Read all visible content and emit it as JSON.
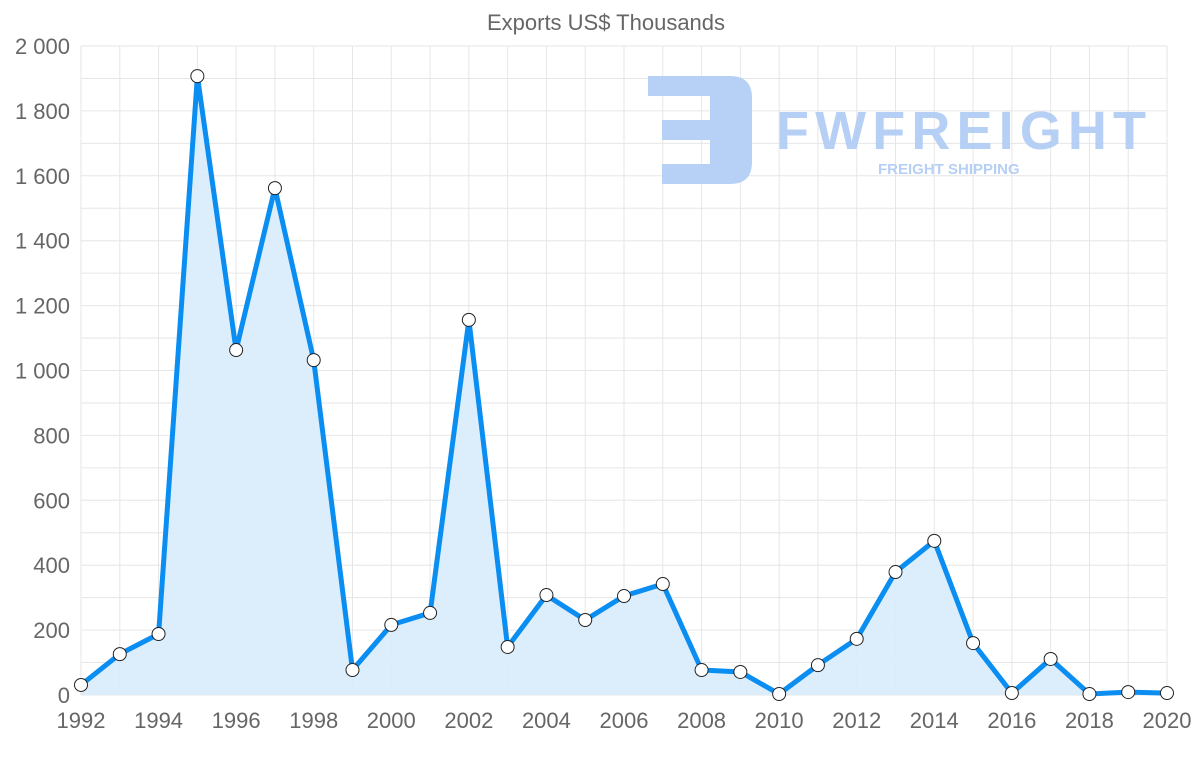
{
  "chart_data": {
    "type": "line",
    "title": "Exports US$ Thousands",
    "xlabel": "",
    "ylabel": "",
    "x": [
      1992,
      1993,
      1994,
      1995,
      1996,
      1997,
      1998,
      1999,
      2000,
      2001,
      2002,
      2003,
      2004,
      2005,
      2006,
      2007,
      2008,
      2009,
      2010,
      2011,
      2012,
      2013,
      2014,
      2015,
      2016,
      2017,
      2018,
      2019,
      2020
    ],
    "series": [
      {
        "name": "Exports US$ Thousands",
        "values": [
          31,
          126,
          188,
          1907,
          1063,
          1562,
          1032,
          77,
          216,
          253,
          1156,
          148,
          308,
          231,
          305,
          342,
          77,
          71,
          3,
          92,
          173,
          379,
          475,
          160,
          6,
          111,
          3,
          9,
          6
        ]
      }
    ],
    "ylim": [
      0,
      2000
    ],
    "xlim": [
      1992,
      2020
    ],
    "y_ticks": [
      0,
      200,
      400,
      600,
      800,
      1000,
      1200,
      1400,
      1600,
      1800,
      2000
    ],
    "y_tick_labels": [
      "0",
      "200",
      "400",
      "600",
      "800",
      "1 000",
      "1 200",
      "1 400",
      "1 600",
      "1 800",
      "2 000"
    ],
    "x_ticks": [
      1992,
      1994,
      1996,
      1998,
      2000,
      2002,
      2004,
      2006,
      2008,
      2010,
      2012,
      2014,
      2016,
      2018,
      2020
    ],
    "x_tick_labels": [
      "1992",
      "1994",
      "1996",
      "1998",
      "2000",
      "2002",
      "2004",
      "2006",
      "2008",
      "2010",
      "2012",
      "2014",
      "2016",
      "2018",
      "2020"
    ],
    "grid": true,
    "filled": true,
    "legend": "none"
  },
  "colors": {
    "line": "#0a8ef2",
    "fill": "#d8ecfc",
    "grid": "#e6e6e6",
    "text": "#666666",
    "watermark": "#b3cdf5"
  },
  "watermark": {
    "brand": "FWFREIGHT",
    "tagline": "FREIGHT SHIPPING"
  }
}
